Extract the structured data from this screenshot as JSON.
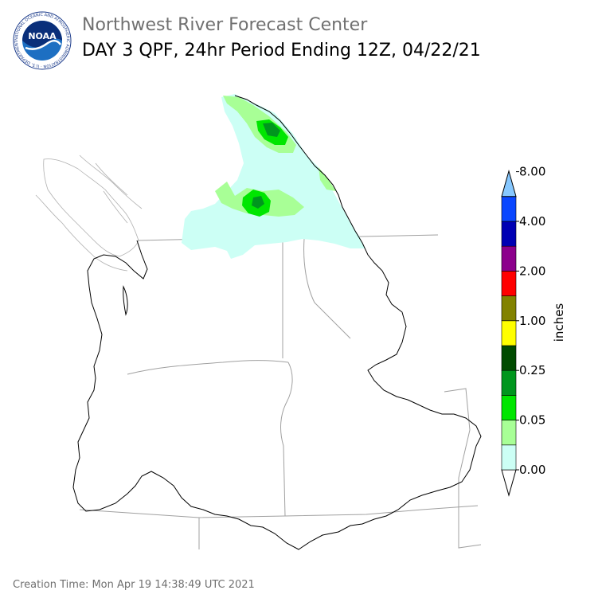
{
  "header": {
    "agency": "Northwest River Forecast Center",
    "product": "DAY 3 QPF, 24hr Period Ending 12Z, 04/22/21",
    "logo_text": "NOAA",
    "logo_ring_text": "NATIONAL OCEANIC AND ATMOSPHERIC ADMINISTRATION · U.S. DEPARTMENT OF COMMERCE"
  },
  "legend": {
    "unit": "inches",
    "colors": [
      "#ffffff",
      "#ccfff5",
      "#a8ff96",
      "#00e600",
      "#00961e",
      "#004b00",
      "#ffff00",
      "#828200",
      "#ff0000",
      "#8c008c",
      "#0000b4",
      "#0a46ff",
      "#87c8ff"
    ],
    "tick_labels": [
      "0.00",
      "0.05",
      "0.25",
      "1.00",
      "2.00",
      "4.00",
      "8.00"
    ]
  },
  "map": {
    "precip_colors": {
      "light": "#ccfff5",
      "moderate": "#a8ff96",
      "heavy": "#00e600",
      "very_heavy": "#00961e"
    },
    "basin_outline_color": "#000000",
    "state_border_color": "#a0a0a0"
  },
  "footer": {
    "creation_time": "Creation Time: Mon Apr 19 14:38:49 UTC 2021"
  }
}
